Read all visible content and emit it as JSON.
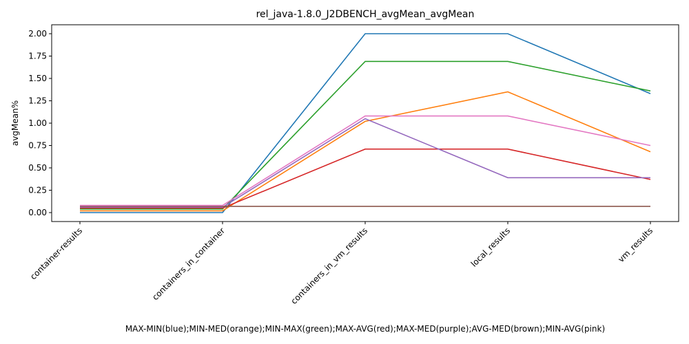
{
  "chart_data": {
    "type": "line",
    "title": "rel_java-1.8.0_J2DBENCH_avgMean_avgMean",
    "ylabel": "avgMean%",
    "xlabel": "MAX-MIN(blue);MIN-MED(orange);MIN-MAX(green);MAX-AVG(red);MAX-MED(purple);AVG-MED(brown);MIN-AVG(pink)",
    "categories": [
      "container-results",
      "containers_in_container",
      "containers_in_vm_results",
      "local_results",
      "vm_results"
    ],
    "ylim": [
      -0.1,
      2.1
    ],
    "yticks": [
      "0.00",
      "0.25",
      "0.50",
      "0.75",
      "1.00",
      "1.25",
      "1.50",
      "1.75",
      "2.00"
    ],
    "grid": false,
    "series": [
      {
        "color": "#1f77b4",
        "values": [
          0.0,
          0.0,
          2.0,
          2.0,
          1.33
        ]
      },
      {
        "color": "#ff7f0e",
        "values": [
          0.02,
          0.02,
          1.02,
          1.35,
          0.68
        ]
      },
      {
        "color": "#2ca02c",
        "values": [
          0.04,
          0.04,
          1.69,
          1.69,
          1.36
        ]
      },
      {
        "color": "#d62728",
        "values": [
          0.05,
          0.05,
          0.71,
          0.71,
          0.37
        ]
      },
      {
        "color": "#9467bd",
        "values": [
          0.06,
          0.06,
          1.05,
          0.39,
          0.39
        ]
      },
      {
        "color": "#8c564b",
        "values": [
          0.07,
          0.07,
          0.07,
          0.07,
          0.07
        ]
      },
      {
        "color": "#e377c2",
        "values": [
          0.08,
          0.08,
          1.08,
          1.08,
          0.75
        ]
      }
    ]
  }
}
